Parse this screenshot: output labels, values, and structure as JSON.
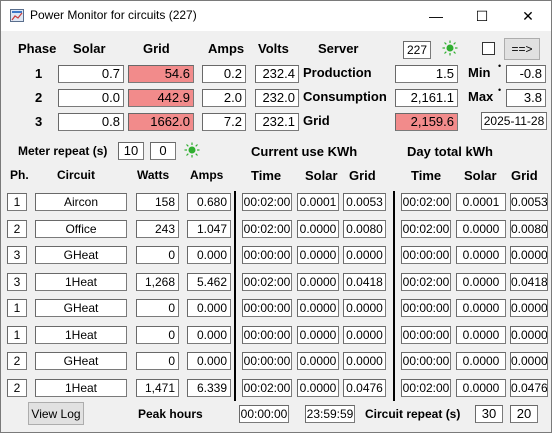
{
  "title": "Power Monitor for circuits (227)",
  "controls": {
    "minimize": "—",
    "maximize": "☐",
    "close": "✕"
  },
  "headers": {
    "phase": "Phase",
    "solar": "Solar",
    "grid": "Grid",
    "amps": "Amps",
    "volts": "Volts",
    "server": "Server"
  },
  "server_id": "227",
  "arrow_button": "==>",
  "phases": [
    {
      "num": "1",
      "solar": "0.7",
      "grid": "54.6",
      "amps": "0.2",
      "volts": "232.4"
    },
    {
      "num": "2",
      "solar": "0.0",
      "grid": "442.9",
      "amps": "2.0",
      "volts": "232.0"
    },
    {
      "num": "3",
      "solar": "0.8",
      "grid": "1662.0",
      "amps": "7.2",
      "volts": "232.1"
    }
  ],
  "summary": {
    "production_label": "Production",
    "production": "1.5",
    "consumption_label": "Consumption",
    "consumption": "2,161.1",
    "grid_label": "Grid",
    "grid": "2,159.6"
  },
  "minmax": {
    "min_label": "Min",
    "min": "-0.8",
    "max_label": "Max",
    "max": "3.8",
    "date": "2025-11-28"
  },
  "meter": {
    "label": "Meter repeat (s)",
    "value1": "10",
    "value2": "0"
  },
  "sections": {
    "current": "Current  use KWh",
    "day": "Day total kWh"
  },
  "cols": {
    "ph": "Ph.",
    "circuit": "Circuit",
    "watts": "Watts",
    "amps": "Amps",
    "time": "Time",
    "solar": "Solar",
    "grid": "Grid"
  },
  "rows": [
    {
      "ph": "1",
      "circuit": "Aircon",
      "watts": "158",
      "amps": "0.680",
      "cur": [
        "00:02:00",
        "0.0001",
        "0.0053"
      ],
      "day": [
        "00:02:00",
        "0.0001",
        "0.0053"
      ]
    },
    {
      "ph": "2",
      "circuit": "Office",
      "watts": "243",
      "amps": "1.047",
      "cur": [
        "00:02:00",
        "0.0000",
        "0.0080"
      ],
      "day": [
        "00:02:00",
        "0.0000",
        "0.0080"
      ]
    },
    {
      "ph": "3",
      "circuit": "GHeat",
      "watts": "0",
      "amps": "0.000",
      "cur": [
        "00:00:00",
        "0.0000",
        "0.0000"
      ],
      "day": [
        "00:00:00",
        "0.0000",
        "0.0000"
      ]
    },
    {
      "ph": "3",
      "circuit": "1Heat",
      "watts": "1,268",
      "amps": "5.462",
      "cur": [
        "00:02:00",
        "0.0000",
        "0.0418"
      ],
      "day": [
        "00:02:00",
        "0.0000",
        "0.0418"
      ]
    },
    {
      "ph": "1",
      "circuit": "GHeat",
      "watts": "0",
      "amps": "0.000",
      "cur": [
        "00:00:00",
        "0.0000",
        "0.0000"
      ],
      "day": [
        "00:00:00",
        "0.0000",
        "0.0000"
      ]
    },
    {
      "ph": "1",
      "circuit": "1Heat",
      "watts": "0",
      "amps": "0.000",
      "cur": [
        "00:00:00",
        "0.0000",
        "0.0000"
      ],
      "day": [
        "00:00:00",
        "0.0000",
        "0.0000"
      ]
    },
    {
      "ph": "2",
      "circuit": "GHeat",
      "watts": "0",
      "amps": "0.000",
      "cur": [
        "00:00:00",
        "0.0000",
        "0.0000"
      ],
      "day": [
        "00:00:00",
        "0.0000",
        "0.0000"
      ]
    },
    {
      "ph": "2",
      "circuit": "1Heat",
      "watts": "1,471",
      "amps": "6.339",
      "cur": [
        "00:02:00",
        "0.0000",
        "0.0476"
      ],
      "day": [
        "00:02:00",
        "0.0000",
        "0.0476"
      ]
    }
  ],
  "footer": {
    "view_log": "View Log",
    "peak_label": "Peak hours",
    "peak_start": "00:00:00",
    "peak_end": "23:59:59",
    "circuit_repeat_label": "Circuit repeat (s)",
    "repeat1": "30",
    "repeat2": "20"
  },
  "icons": {
    "app": "app-icon",
    "led": "green-led-icon"
  },
  "colors": {
    "highlight": "#f28b8b",
    "led": "#2fae2f"
  }
}
